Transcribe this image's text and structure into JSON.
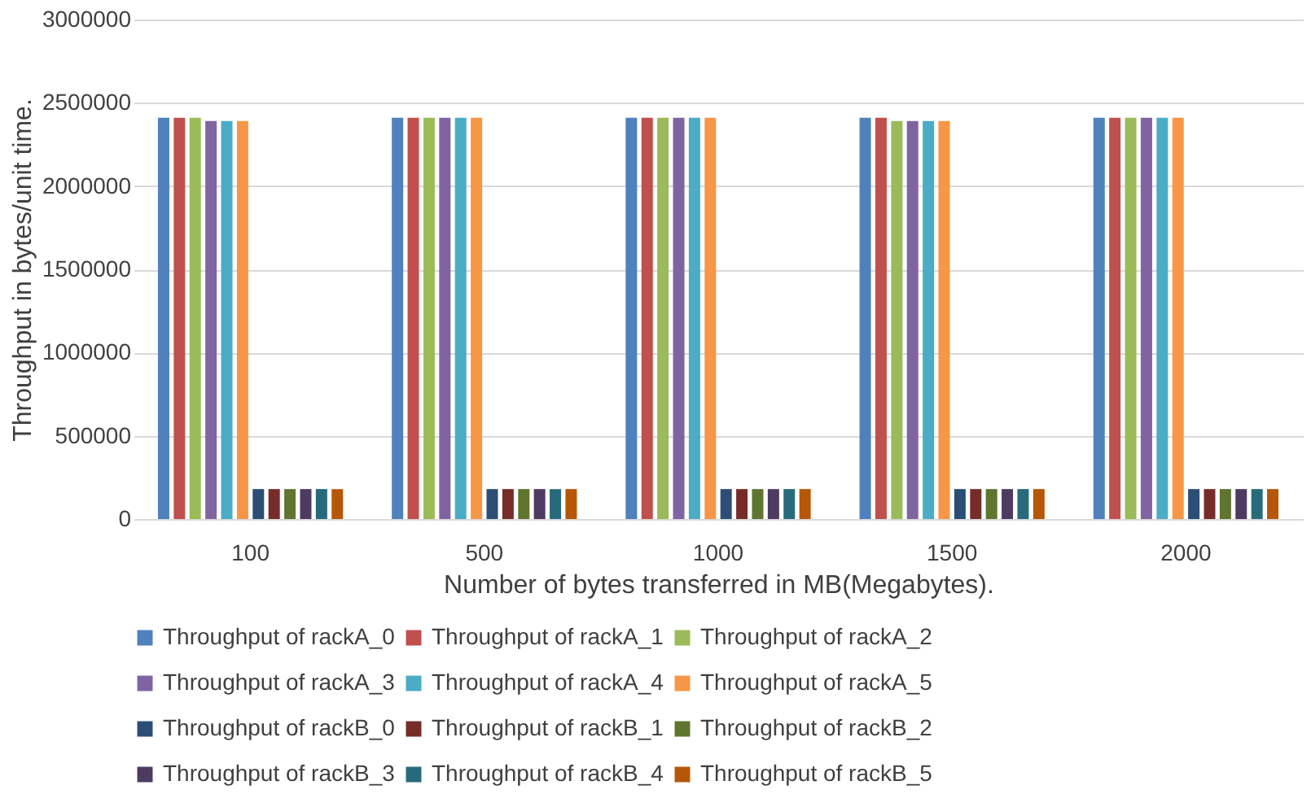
{
  "chart_data": {
    "type": "bar",
    "xlabel": "Number of bytes transferred in MB(Megabytes).",
    "ylabel": "Throughput in bytes/unit time.",
    "categories": [
      "100",
      "500",
      "1000",
      "1500",
      "2000"
    ],
    "ylim": [
      0,
      3000000
    ],
    "yticks": [
      0,
      500000,
      1000000,
      1500000,
      2000000,
      2500000,
      3000000
    ],
    "grid": "y",
    "legend": "bottom",
    "series": [
      {
        "name": "Throughput of rackA_0",
        "color": "#4f81bd",
        "values": [
          2410000,
          2410000,
          2410000,
          2410000,
          2410000
        ]
      },
      {
        "name": "Throughput of rackA_1",
        "color": "#c0504d",
        "values": [
          2410000,
          2410000,
          2410000,
          2410000,
          2410000
        ]
      },
      {
        "name": "Throughput of rackA_2",
        "color": "#9bbb59",
        "values": [
          2410000,
          2410000,
          2410000,
          2390000,
          2410000
        ]
      },
      {
        "name": "Throughput of rackA_3",
        "color": "#8064a2",
        "values": [
          2390000,
          2410000,
          2410000,
          2390000,
          2410000
        ]
      },
      {
        "name": "Throughput of rackA_4",
        "color": "#4bacc6",
        "values": [
          2390000,
          2410000,
          2410000,
          2390000,
          2410000
        ]
      },
      {
        "name": "Throughput of rackA_5",
        "color": "#f79646",
        "values": [
          2390000,
          2410000,
          2410000,
          2390000,
          2410000
        ]
      },
      {
        "name": "Throughput of rackB_0",
        "color": "#2c4d75",
        "values": [
          180000,
          180000,
          180000,
          180000,
          180000
        ]
      },
      {
        "name": "Throughput of rackB_1",
        "color": "#772c2a",
        "values": [
          180000,
          180000,
          180000,
          180000,
          180000
        ]
      },
      {
        "name": "Throughput of rackB_2",
        "color": "#5f7530",
        "values": [
          180000,
          180000,
          180000,
          180000,
          180000
        ]
      },
      {
        "name": "Throughput of rackB_3",
        "color": "#4d3b62",
        "values": [
          180000,
          180000,
          180000,
          180000,
          180000
        ]
      },
      {
        "name": "Throughput of rackB_4",
        "color": "#276a7c",
        "values": [
          180000,
          180000,
          180000,
          180000,
          180000
        ]
      },
      {
        "name": "Throughput of rackB_5",
        "color": "#b65708",
        "values": [
          180000,
          180000,
          180000,
          180000,
          180000
        ]
      }
    ]
  }
}
